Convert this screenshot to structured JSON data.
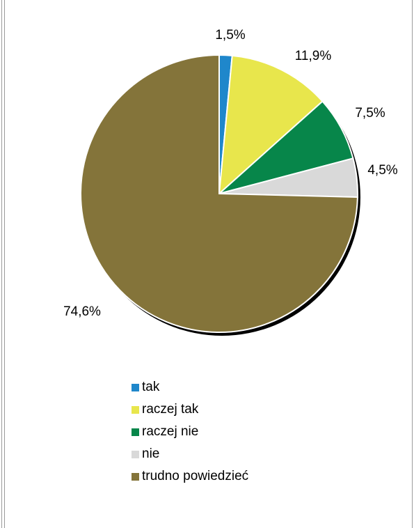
{
  "chart_data": {
    "type": "pie",
    "title": "",
    "categories": [
      "tak",
      "raczej tak",
      "raczej nie",
      "nie",
      "trudno powiedzieć"
    ],
    "values": [
      1.5,
      11.9,
      7.5,
      4.5,
      74.6
    ],
    "data_labels": [
      "1,5%",
      "11,9%",
      "7,5%",
      "4,5%",
      "74,6%"
    ],
    "colors": [
      "#1f87cb",
      "#e8e64c",
      "#07864a",
      "#d9d9d9",
      "#84743a"
    ],
    "legend": {
      "position": "bottom"
    },
    "start_angle": "12 o'clock",
    "direction": "clockwise"
  }
}
